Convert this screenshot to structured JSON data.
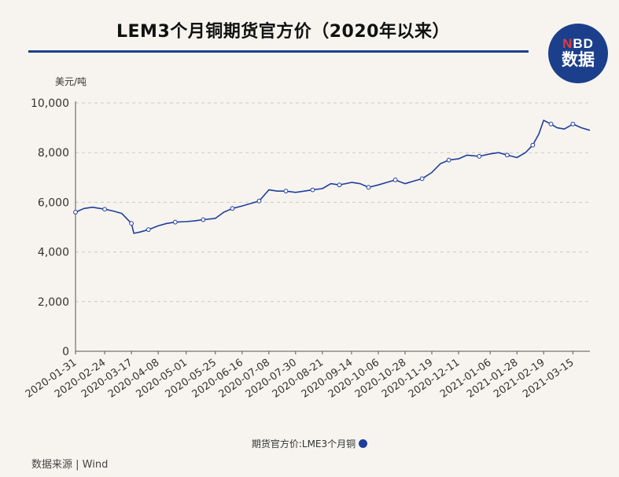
{
  "header": {
    "title": "LEM3个月铜期货官方价（2020年以来）",
    "logo_top_n": "N",
    "logo_top_rest": "BD",
    "logo_bottom": "数据"
  },
  "footer": {
    "source": "数据来源 | Wind"
  },
  "colors": {
    "brand": "#1c3f8c",
    "line": "#1f3e9c",
    "background": "#f7f4ef"
  },
  "chart_data": {
    "type": "line",
    "title": "LEM3个月铜期货官方价（2020年以来）",
    "ylabel": "美元/吨",
    "ylim": [
      0,
      10000
    ],
    "yticks": [
      0,
      2000,
      4000,
      6000,
      8000,
      10000
    ],
    "ytick_labels": [
      "0",
      "2,000",
      "4,000",
      "6,000",
      "8,000",
      "10,000"
    ],
    "x_tick_labels": [
      "2020-01-31",
      "2020-02-24",
      "2020-03-17",
      "2020-04-08",
      "2020-05-01",
      "2020-05-25",
      "2020-06-16",
      "2020-07-08",
      "2020-07-30",
      "2020-08-21",
      "2020-09-14",
      "2020-10-06",
      "2020-10-28",
      "2020-11-19",
      "2020-12-11",
      "2021-01-06",
      "2021-01-28",
      "2021-02-19",
      "2021-03-15"
    ],
    "legend": "bottom",
    "series": [
      {
        "name": "期货官方价:LME3个月铜",
        "x": [
          "2020-01-31",
          "2020-02-07",
          "2020-02-14",
          "2020-02-24",
          "2020-03-02",
          "2020-03-09",
          "2020-03-17",
          "2020-03-19",
          "2020-03-24",
          "2020-03-31",
          "2020-04-08",
          "2020-04-15",
          "2020-04-22",
          "2020-05-01",
          "2020-05-08",
          "2020-05-15",
          "2020-05-25",
          "2020-06-01",
          "2020-06-08",
          "2020-06-16",
          "2020-06-23",
          "2020-06-30",
          "2020-07-08",
          "2020-07-15",
          "2020-07-22",
          "2020-07-30",
          "2020-08-06",
          "2020-08-13",
          "2020-08-21",
          "2020-08-28",
          "2020-09-04",
          "2020-09-14",
          "2020-09-21",
          "2020-09-28",
          "2020-10-06",
          "2020-10-13",
          "2020-10-20",
          "2020-10-28",
          "2020-11-04",
          "2020-11-11",
          "2020-11-19",
          "2020-11-26",
          "2020-12-03",
          "2020-12-11",
          "2020-12-18",
          "2020-12-28",
          "2021-01-06",
          "2021-01-13",
          "2021-01-20",
          "2021-01-28",
          "2021-02-04",
          "2021-02-10",
          "2021-02-15",
          "2021-02-19",
          "2021-02-25",
          "2021-03-02",
          "2021-03-08",
          "2021-03-15",
          "2021-03-22",
          "2021-03-29"
        ],
        "values": [
          5600,
          5750,
          5800,
          5720,
          5650,
          5550,
          5150,
          4750,
          4800,
          4900,
          5050,
          5150,
          5200,
          5220,
          5250,
          5300,
          5350,
          5600,
          5750,
          5850,
          5950,
          6050,
          6500,
          6450,
          6450,
          6400,
          6450,
          6500,
          6550,
          6750,
          6700,
          6800,
          6750,
          6600,
          6700,
          6800,
          6900,
          6750,
          6850,
          6950,
          7200,
          7550,
          7700,
          7750,
          7900,
          7850,
          7950,
          8000,
          7900,
          7800,
          8000,
          8300,
          8750,
          9300,
          9150,
          9000,
          8950,
          9150,
          9000,
          8900
        ]
      }
    ]
  }
}
